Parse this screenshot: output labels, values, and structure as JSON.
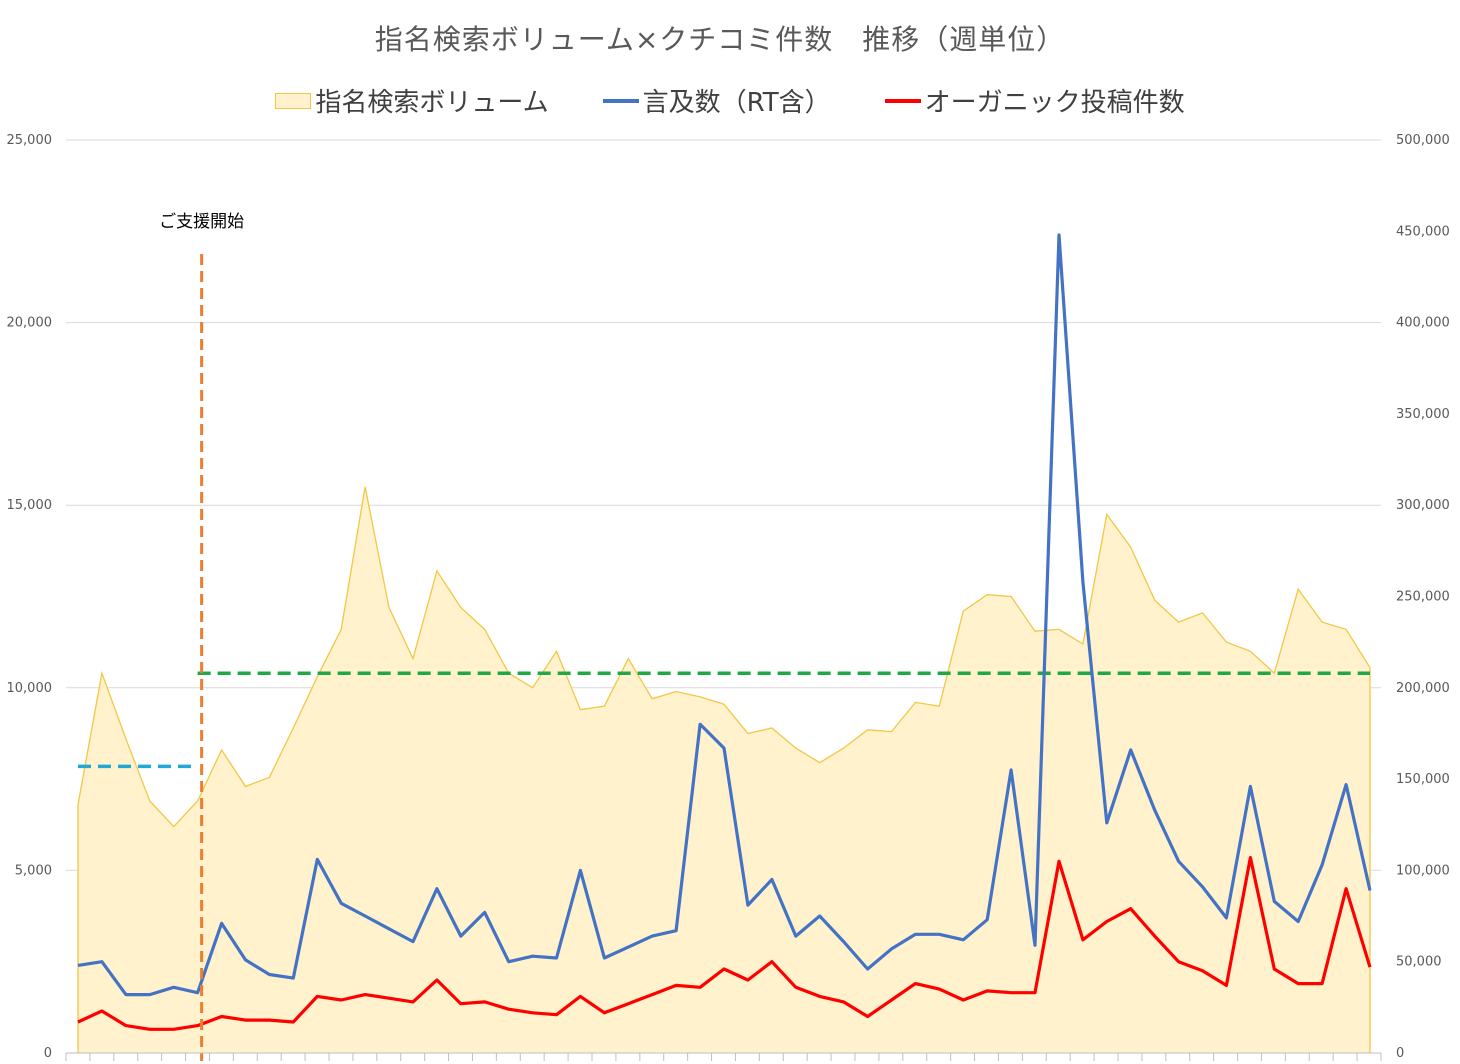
{
  "chart_data": {
    "type": "area",
    "title": "指名検索ボリューム×クチコミ件数　推移（週単位）",
    "legend_position": "top",
    "left_axis": {
      "ylim": [
        0,
        25000
      ],
      "ticks": [
        "0",
        "5,000",
        "10,000",
        "15,000",
        "20,000",
        "25,000"
      ]
    },
    "right_axis": {
      "ylim": [
        0,
        500000
      ],
      "ticks": [
        "0",
        "50,000",
        "100,000",
        "150,000",
        "200,000",
        "250,000",
        "300,000",
        "350,000",
        "400,000",
        "450,000",
        "500,000"
      ]
    },
    "grid": true,
    "series": [
      {
        "name": "指名検索ボリューム",
        "type": "area",
        "axis": "left",
        "color": "#fff2cc",
        "stroke": "#f2c744",
        "values": [
          6800,
          10400,
          8600,
          6900,
          6200,
          6900,
          8300,
          7300,
          7550,
          8900,
          10300,
          11600,
          15500,
          12200,
          10800,
          13200,
          12200,
          11600,
          10400,
          10000,
          11000,
          9400,
          9500,
          10800,
          9700,
          9900,
          9750,
          9550,
          8750,
          8900,
          8350,
          7950,
          8350,
          8850,
          8800,
          9600,
          9500,
          12100,
          12550,
          12500,
          11550,
          11600,
          11200,
          14750,
          13850,
          12400,
          11800,
          12050,
          11250,
          11000,
          10400,
          12700,
          11800,
          11600,
          10550
        ]
      },
      {
        "name": "言及数（RT含）",
        "type": "line",
        "axis": "right",
        "color": "#4472c4",
        "values": [
          48000,
          50000,
          32000,
          32000,
          36000,
          33000,
          71000,
          51000,
          43000,
          41000,
          106000,
          82000,
          75000,
          68000,
          61000,
          90000,
          64000,
          77000,
          50000,
          53000,
          52000,
          100000,
          52000,
          58000,
          64000,
          67000,
          180000,
          167000,
          81000,
          95000,
          64000,
          75000,
          61000,
          46000,
          57000,
          65000,
          65000,
          62000,
          73000,
          155000,
          59000,
          448000,
          258000,
          126000,
          166000,
          133000,
          105000,
          91000,
          74000,
          146000,
          83000,
          72000,
          103000,
          147000,
          89000
        ]
      },
      {
        "name": "オーガニック投稿件数",
        "type": "line",
        "axis": "right",
        "color": "#ff0000",
        "values": [
          17000,
          23000,
          15000,
          13000,
          13000,
          15000,
          20000,
          18000,
          18000,
          17000,
          31000,
          29000,
          32000,
          30000,
          28000,
          40000,
          27000,
          28000,
          24000,
          22000,
          21000,
          31000,
          22000,
          27000,
          32000,
          37000,
          36000,
          46000,
          40000,
          50000,
          36000,
          31000,
          28000,
          20000,
          29000,
          38000,
          35000,
          29000,
          34000,
          33000,
          33000,
          105000,
          62000,
          72000,
          79000,
          64000,
          50000,
          45000,
          37000,
          107000,
          46000,
          38000,
          38000,
          90000,
          47000
        ]
      }
    ],
    "reference_lines": [
      {
        "label": "ご支援開始",
        "type": "vertical",
        "at_index": 5,
        "color": "#ed7d31"
      },
      {
        "type": "horizontal",
        "axis": "left",
        "value": 7850,
        "from_index": 0,
        "to_index": 5,
        "color": "#1fa8d8"
      },
      {
        "type": "horizontal",
        "axis": "left",
        "value": 10400,
        "from_index": 5,
        "to_index": 54,
        "color": "#1fa846"
      }
    ]
  }
}
